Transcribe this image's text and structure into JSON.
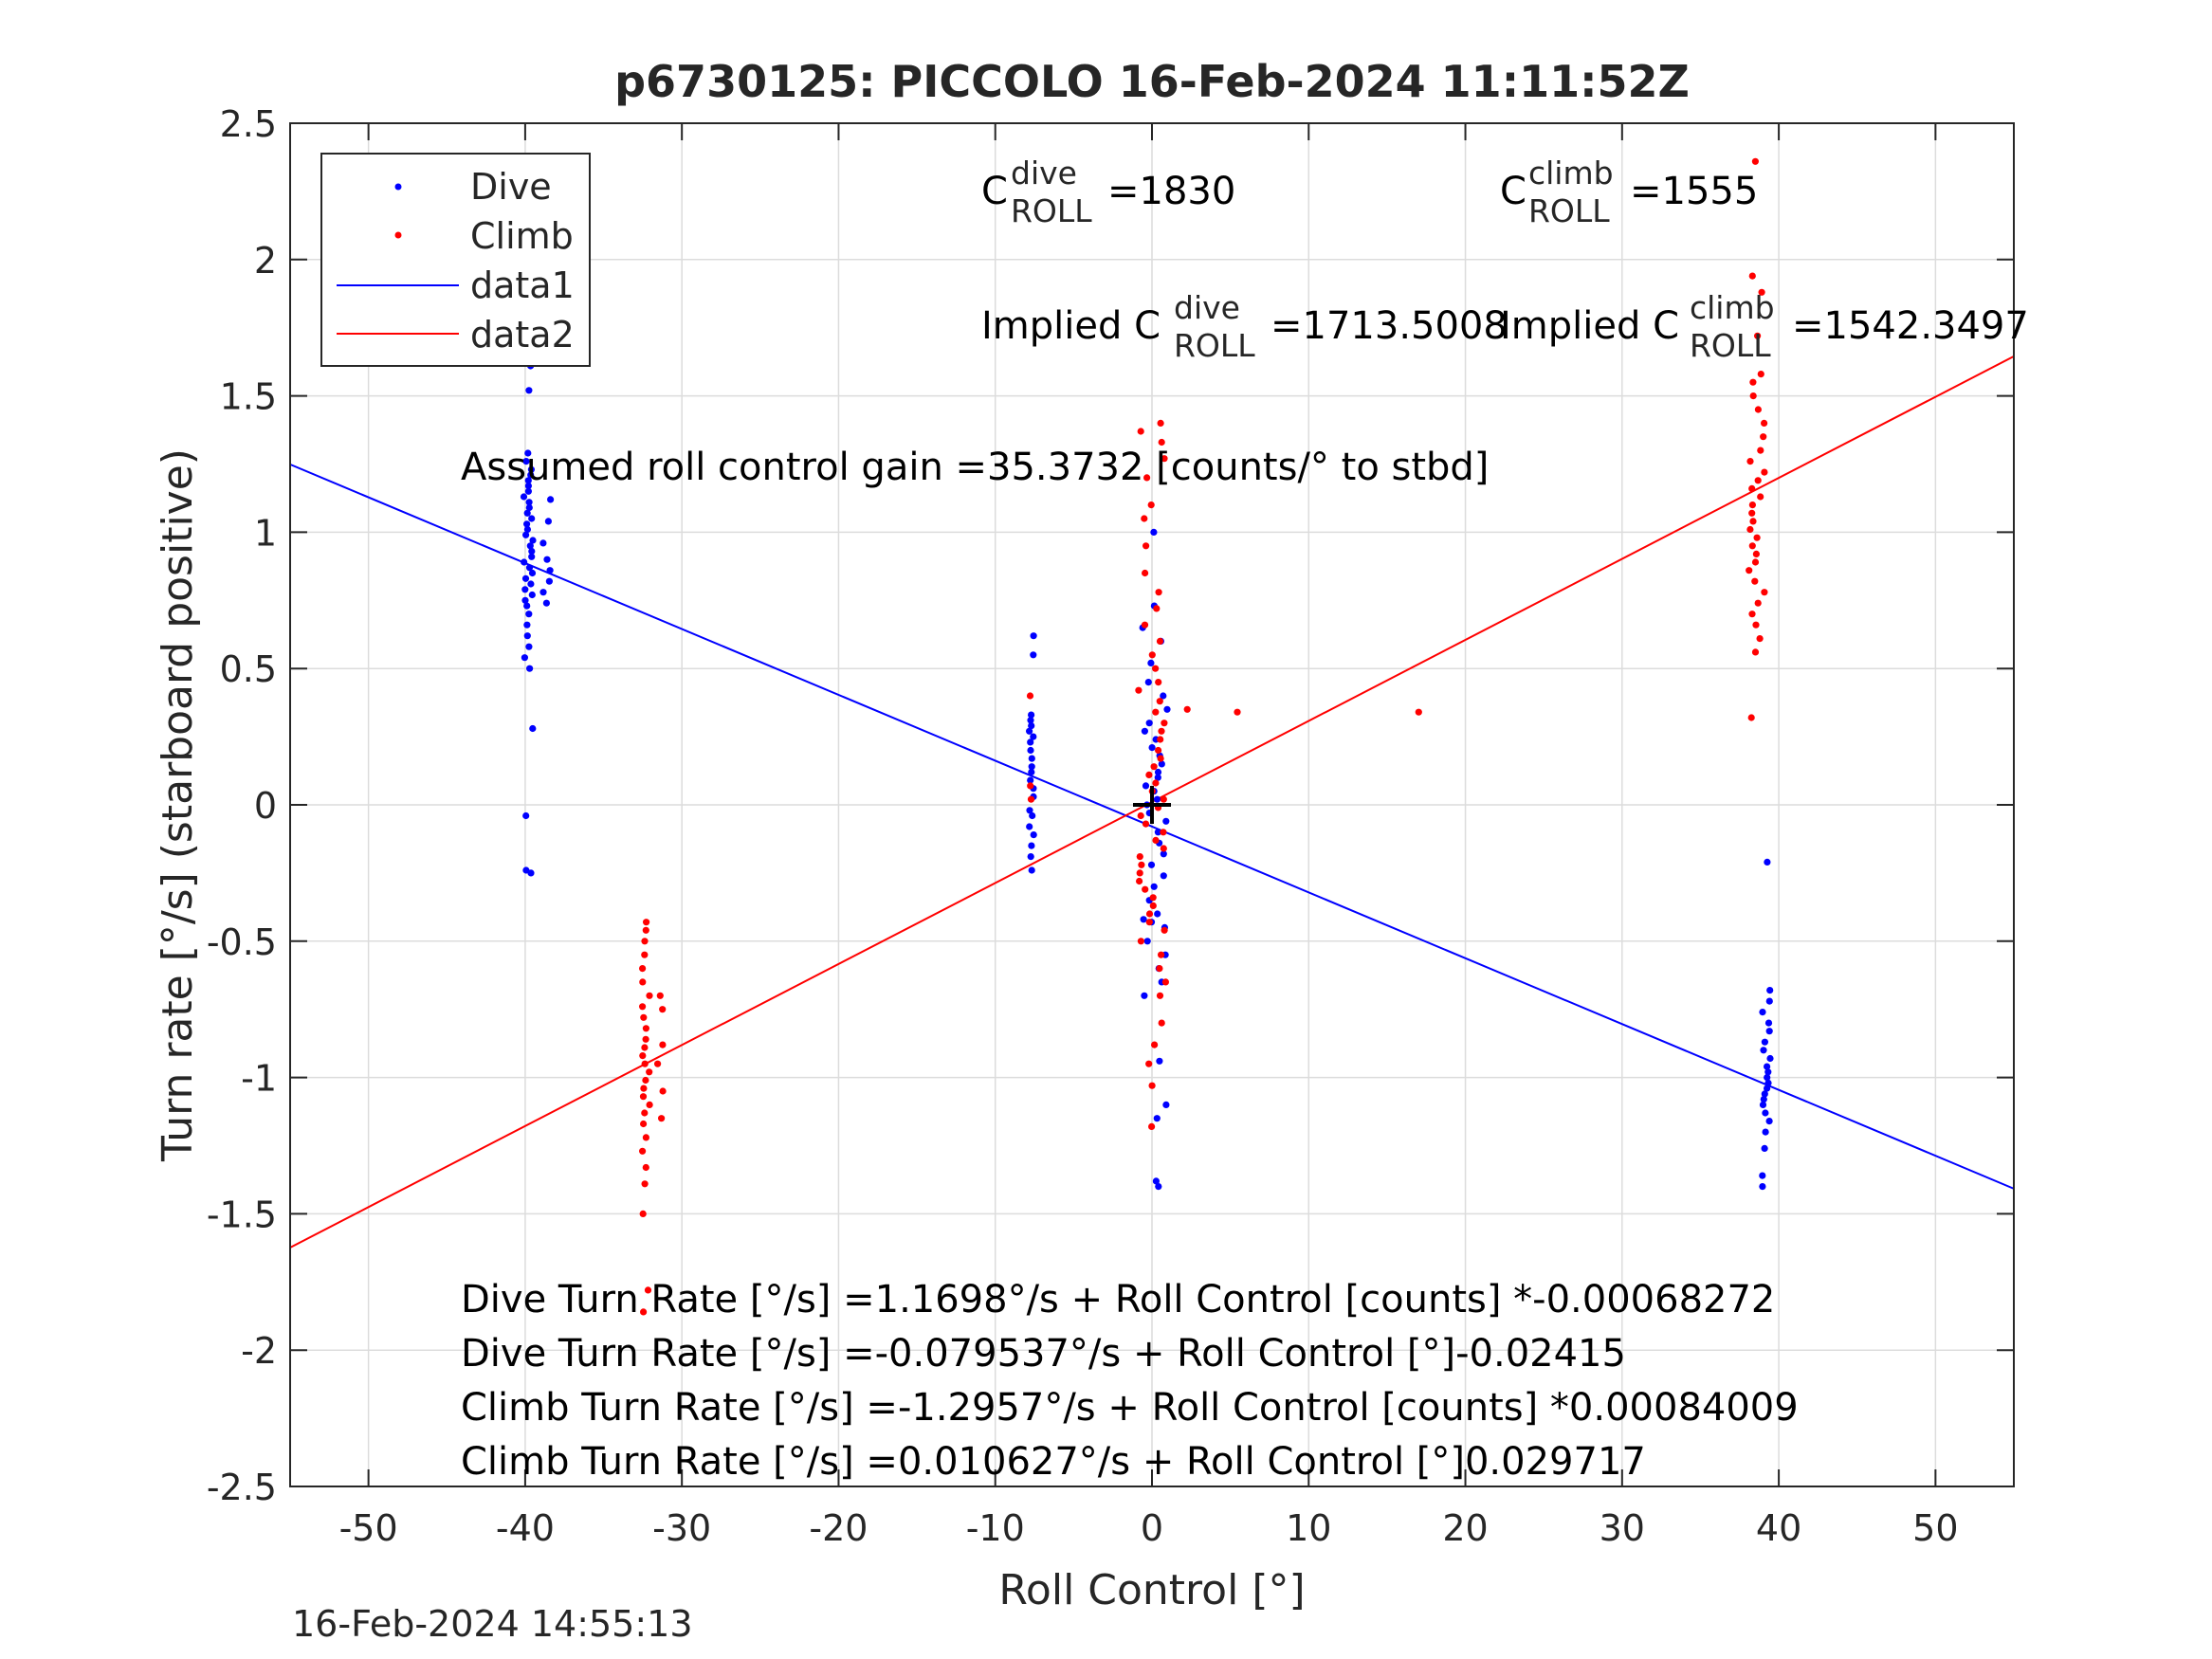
{
  "chart_data": {
    "type": "scatter",
    "title": "p6730125: PICCOLO 16-Feb-2024 11:11:52Z",
    "xlabel": "Roll Control [°]",
    "ylabel": "Turn rate [°/s] (starboard positive)",
    "xlim": [
      -55,
      55
    ],
    "ylim": [
      -2.5,
      2.5
    ],
    "xticks": [
      -50,
      -40,
      -30,
      -20,
      -10,
      0,
      10,
      20,
      30,
      40,
      50
    ],
    "yticks": [
      2.5,
      2,
      1.5,
      1,
      0.5,
      0,
      -0.5,
      -1,
      -1.5,
      -2,
      -2.5
    ],
    "xtick_labels": [
      "-50",
      "-40",
      "-30",
      "-20",
      "-10",
      "0",
      "10",
      "20",
      "30",
      "40",
      "50"
    ],
    "ytick_labels": [
      "2.5",
      "2",
      "1.5",
      "1",
      "0.5",
      "0",
      "-0.5",
      "-1",
      "-1.5",
      "-2",
      "-2.5"
    ],
    "grid": true,
    "legend_position": "top-left",
    "legend": [
      {
        "label": "Dive",
        "kind": "marker",
        "color": "#0000ff"
      },
      {
        "label": "Climb",
        "kind": "marker",
        "color": "#ff0000"
      },
      {
        "label": "data1",
        "kind": "line",
        "color": "#0000ff"
      },
      {
        "label": "data2",
        "kind": "line",
        "color": "#ff0000"
      }
    ],
    "series": [
      {
        "name": "Dive",
        "color": "#0000ff",
        "clusters": [
          {
            "x_center": -39.8,
            "x_spread": 0.6,
            "y_values": [
              1.61,
              1.52,
              1.29,
              1.26,
              1.23,
              1.21,
              1.19,
              1.17,
              1.15,
              1.13,
              1.11,
              1.09,
              1.07,
              1.05,
              1.03,
              1.01,
              0.99,
              0.97,
              0.95,
              0.93,
              0.91,
              0.89,
              0.87,
              0.85,
              0.83,
              0.81,
              0.79,
              0.77,
              0.75,
              0.73,
              0.7,
              0.66,
              0.62,
              0.58,
              0.54,
              0.5,
              0.28,
              -0.04,
              -0.24,
              -0.25
            ]
          },
          {
            "x_center": -38.6,
            "x_spread": 0.6,
            "y_values": [
              1.12,
              1.04,
              0.96,
              0.9,
              0.86,
              0.82,
              0.78,
              0.74
            ]
          },
          {
            "x_center": -7.7,
            "x_spread": 0.3,
            "y_values": [
              0.62,
              0.55,
              0.33,
              0.31,
              0.29,
              0.27,
              0.25,
              0.23,
              0.2,
              0.17,
              0.14,
              0.12,
              0.09,
              0.06,
              0.03,
              -0.02,
              -0.04,
              -0.08,
              -0.11,
              -0.15,
              -0.19,
              -0.24
            ]
          },
          {
            "x_center": 0.2,
            "x_spread": 1.6,
            "y_values": [
              1.0,
              0.73,
              0.65,
              0.6,
              0.52,
              0.45,
              0.4,
              0.35,
              0.3,
              0.27,
              0.24,
              0.21,
              0.18,
              0.15,
              0.12,
              0.1,
              0.07,
              0.05,
              0.02,
              0.0,
              -0.03,
              -0.06,
              -0.1,
              -0.14,
              -0.18,
              -0.22,
              -0.26,
              -0.3,
              -0.35,
              -0.4,
              -0.42,
              -0.43,
              -0.45,
              -0.5,
              -0.55,
              -0.6,
              -0.65,
              -0.7,
              -0.94,
              -1.1,
              -1.15,
              -1.38,
              -1.4
            ]
          },
          {
            "x_center": 39.2,
            "x_spread": 0.5,
            "y_values": [
              -0.21,
              -0.68,
              -0.72,
              -0.76,
              -0.8,
              -0.83,
              -0.87,
              -0.9,
              -0.93,
              -0.96,
              -0.98,
              -1.0,
              -1.02,
              -1.04,
              -1.06,
              -1.08,
              -1.1,
              -1.13,
              -1.16,
              -1.2,
              -1.26,
              -1.36,
              -1.4
            ]
          }
        ]
      },
      {
        "name": "Climb",
        "color": "#ff0000",
        "clusters": [
          {
            "x_center": -32.3,
            "x_spread": 0.5,
            "y_values": [
              -0.43,
              -0.46,
              -0.5,
              -0.55,
              -0.6,
              -0.65,
              -0.7,
              -0.74,
              -0.78,
              -0.82,
              -0.86,
              -0.89,
              -0.92,
              -0.95,
              -0.98,
              -1.01,
              -1.04,
              -1.07,
              -1.1,
              -1.13,
              -1.17,
              -1.22,
              -1.27,
              -1.33,
              -1.39,
              -1.5,
              -1.78,
              -1.86
            ]
          },
          {
            "x_center": -31.4,
            "x_spread": 0.4,
            "y_values": [
              -0.7,
              -0.75,
              -0.88,
              -0.95,
              -1.05,
              -1.15
            ]
          },
          {
            "x_center": -7.7,
            "x_spread": 0.2,
            "y_values": [
              0.4,
              0.07,
              0.02
            ]
          },
          {
            "x_center": 0.0,
            "x_spread": 1.8,
            "y_values": [
              1.4,
              1.37,
              1.33,
              1.27,
              1.2,
              1.1,
              1.05,
              0.95,
              0.85,
              0.78,
              0.72,
              0.66,
              0.6,
              0.55,
              0.5,
              0.45,
              0.42,
              0.38,
              0.34,
              0.3,
              0.27,
              0.24,
              0.2,
              0.17,
              0.14,
              0.11,
              0.08,
              0.05,
              0.02,
              -0.01,
              -0.04,
              -0.07,
              -0.1,
              -0.13,
              -0.16,
              -0.19,
              -0.22,
              -0.25,
              -0.28,
              -0.31,
              -0.34,
              -0.37,
              -0.4,
              -0.43,
              -0.46,
              -0.5,
              -0.55,
              -0.6,
              -0.65,
              -0.7,
              -0.8,
              -0.88,
              -0.95,
              -1.03,
              -1.18
            ]
          },
          {
            "x_center": 2.2,
            "x_spread": 0.2,
            "y_values": [
              0.35
            ]
          },
          {
            "x_center": 5.5,
            "x_spread": 0.2,
            "y_values": [
              0.34
            ]
          },
          {
            "x_center": 17.0,
            "x_spread": 0.2,
            "y_values": [
              0.34
            ]
          },
          {
            "x_center": 38.6,
            "x_spread": 1.0,
            "y_values": [
              2.36,
              1.94,
              1.88,
              1.72,
              1.58,
              1.55,
              1.5,
              1.45,
              1.4,
              1.35,
              1.3,
              1.26,
              1.22,
              1.19,
              1.16,
              1.13,
              1.1,
              1.07,
              1.04,
              1.01,
              0.98,
              0.95,
              0.92,
              0.89,
              0.86,
              0.82,
              0.78,
              0.74,
              0.7,
              0.66,
              0.61,
              0.56,
              0.32
            ]
          }
        ]
      }
    ],
    "fit_lines": [
      {
        "name": "data1",
        "color": "#0000ff",
        "intercept": -0.079537,
        "slope": -0.02415
      },
      {
        "name": "data2",
        "color": "#ff0000",
        "intercept": 0.010627,
        "slope": 0.029717
      }
    ],
    "center_marker": {
      "x": 0,
      "y": 0,
      "symbol": "+"
    },
    "annotations": {
      "c_roll_dive": {
        "base": "C",
        "sup": "dive",
        "sub": "ROLL",
        "value": "=1830"
      },
      "c_roll_climb": {
        "base": "C",
        "sup": "climb",
        "sub": "ROLL",
        "value": "=1555"
      },
      "implied_dive": {
        "prefix": "Implied C",
        "sup": "dive",
        "sub": "ROLL",
        "value": "=1713.5008"
      },
      "implied_climb": {
        "prefix": "Implied C",
        "sup": "climb",
        "sub": "ROLL",
        "value": "=1542.3497"
      },
      "gain": "Assumed roll control gain =35.3732 [counts/° to stbd]",
      "equations": [
        "Dive Turn Rate [°/s] =1.1698°/s + Roll Control [counts] *-0.00068272",
        "Dive Turn Rate [°/s] =-0.079537°/s + Roll Control [°]-0.02415",
        "Climb Turn Rate [°/s] =-1.2957°/s + Roll Control [counts] *0.00084009",
        "Climb Turn Rate [°/s] =0.010627°/s + Roll Control [°]0.029717"
      ]
    },
    "timestamp": "16-Feb-2024 14:55:13"
  }
}
